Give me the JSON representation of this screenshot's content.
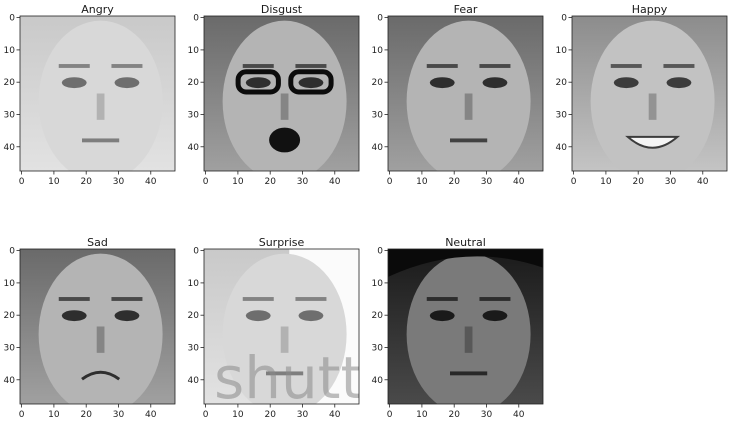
{
  "figure": {
    "panels": [
      {
        "title": "Angry",
        "tone": "light"
      },
      {
        "title": "Disgust",
        "tone": "medium"
      },
      {
        "title": "Fear",
        "tone": "medium"
      },
      {
        "title": "Happy",
        "tone": "medium-light"
      },
      {
        "title": "Sad",
        "tone": "medium"
      },
      {
        "title": "Surprise",
        "tone": "light",
        "watermark": "shutt"
      },
      {
        "title": "Neutral",
        "tone": "dark"
      }
    ],
    "x_ticks": [
      "0",
      "10",
      "20",
      "30",
      "40"
    ],
    "y_ticks": [
      "0",
      "10",
      "20",
      "30",
      "40"
    ],
    "axis_range": [
      0,
      48
    ]
  }
}
